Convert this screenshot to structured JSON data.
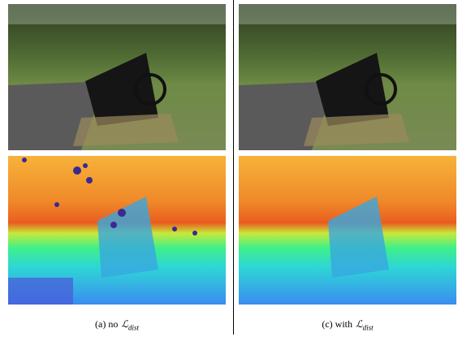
{
  "panels": [
    {
      "caption": {
        "prefix": "(a) no",
        "symbol": "ℒ",
        "subscript": "dist"
      }
    },
    {
      "caption": {
        "prefix": "(c) with",
        "symbol": "ℒ",
        "subscript": "dist"
      }
    }
  ]
}
